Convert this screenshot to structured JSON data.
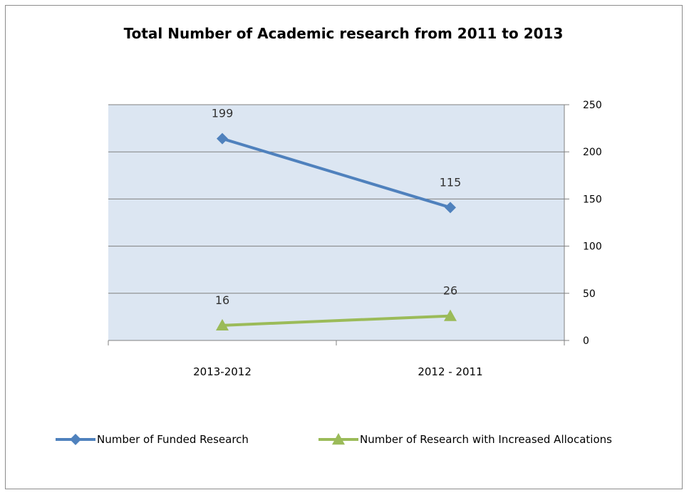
{
  "chart_data": {
    "type": "line",
    "title": "Total Number of Academic research from 2011 to 2013",
    "xlabel": "",
    "ylabel": "",
    "categories": [
      "2013-2012",
      "2012 - 2011"
    ],
    "y_axis": {
      "position": "right",
      "min": 0,
      "max": 250,
      "step": 50,
      "ticks": [
        "0",
        "50",
        "100",
        "150",
        "200",
        "250"
      ]
    },
    "grid": true,
    "plot_background": "#dce6f2",
    "legend_position": "bottom",
    "series": [
      {
        "name": "Number of Funded Research",
        "values": [
          214,
          141
        ],
        "labels": [
          "199",
          "115"
        ],
        "color": "#4f81bd",
        "marker": "diamond"
      },
      {
        "name": "Number of Research with Increased Allocations",
        "values": [
          16,
          26
        ],
        "labels": [
          "16",
          "26"
        ],
        "color": "#9bbb59",
        "marker": "triangle"
      }
    ]
  }
}
